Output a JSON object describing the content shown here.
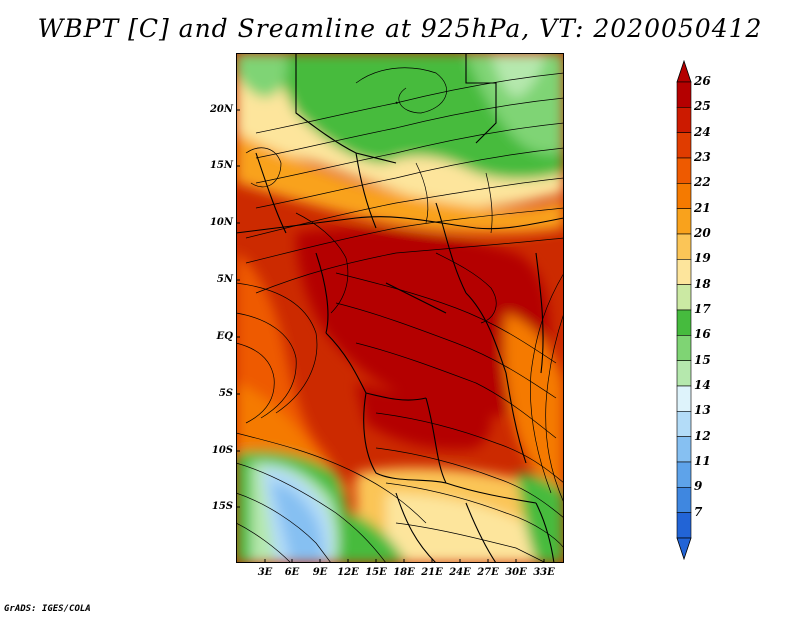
{
  "title": "WBPT [C] and Sreamline at 925hPa, VT: 2020050412",
  "footer": "GrADS: IGES/COLA",
  "map": {
    "lat_labels": [
      "20N",
      "15N",
      "10N",
      "5N",
      "EQ",
      "5S",
      "10S",
      "15S"
    ],
    "lon_labels": [
      "3E",
      "6E",
      "9E",
      "12E",
      "15E",
      "18E",
      "21E",
      "24E",
      "27E",
      "30E",
      "33E"
    ]
  },
  "colorbar": {
    "levels": [
      "26",
      "25",
      "24",
      "23",
      "22",
      "21",
      "20",
      "19",
      "18",
      "17",
      "16",
      "15",
      "14",
      "13",
      "12",
      "11",
      "9",
      "7"
    ],
    "colors": [
      "#b40000",
      "#cc1a00",
      "#e03c00",
      "#ee5a00",
      "#f57a00",
      "#f9a21c",
      "#fbc557",
      "#fde59c",
      "#cbe9a3",
      "#46bb3e",
      "#7fd474",
      "#b5e8ad",
      "#def3fb",
      "#b3dcf8",
      "#86c0f2",
      "#5ea3ea",
      "#3f87e0",
      "#2264d6"
    ]
  }
}
